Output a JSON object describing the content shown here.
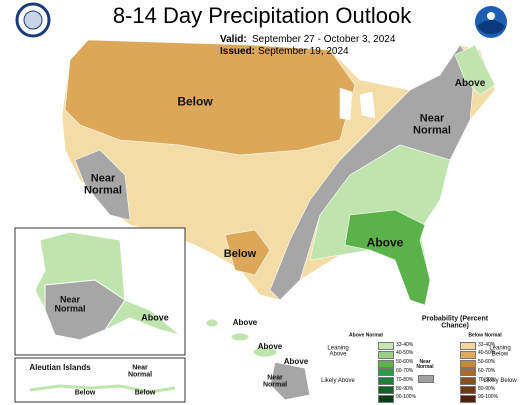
{
  "header": {
    "title": "8-14 Day Precipitation Outlook",
    "valid_label": "Valid:",
    "valid": "September 27 - October 3, 2024",
    "issued_label": "Issued:",
    "issued": "September 19, 2024"
  },
  "map_labels": [
    {
      "text": "Below"
    },
    {
      "text": "Above"
    },
    {
      "text": "Near Normal"
    },
    {
      "text": "Near Normal"
    },
    {
      "text": "Below"
    },
    {
      "text": "Above"
    },
    {
      "text": "Near Normal"
    },
    {
      "text": "Above"
    },
    {
      "text": "Aleutian Islands"
    },
    {
      "text": "Near Normal"
    },
    {
      "text": "Below"
    },
    {
      "text": "Below"
    },
    {
      "text": "Above"
    },
    {
      "text": "Above"
    },
    {
      "text": "Above"
    },
    {
      "text": "Near Normal"
    }
  ],
  "legend": {
    "title": "Probability (Percent Chance)",
    "above_header": "Above Normal",
    "below_header": "Below Normal",
    "near_normal": {
      "label": "Near Normal",
      "color": "#a0a0a0"
    },
    "above": {
      "leaning": "Leaning Above",
      "likely": "Likely Above",
      "bins": [
        {
          "range": "33-40%",
          "color": "#c8e6b5"
        },
        {
          "range": "40-50%",
          "color": "#9bd08a"
        },
        {
          "range": "50-60%",
          "color": "#5cb34e"
        },
        {
          "range": "60-70%",
          "color": "#2f9a4a"
        },
        {
          "range": "70-80%",
          "color": "#217f3c"
        },
        {
          "range": "80-90%",
          "color": "#135f2a"
        },
        {
          "range": "90-100%",
          "color": "#0b3f1a"
        }
      ]
    },
    "below": {
      "leaning": "Leaning Below",
      "likely": "Likely Below",
      "bins": [
        {
          "range": "33-40%",
          "color": "#f1d79c"
        },
        {
          "range": "40-50%",
          "color": "#dfaa62"
        },
        {
          "range": "50-60%",
          "color": "#c98a3c"
        },
        {
          "range": "60-70%",
          "color": "#a96a2c"
        },
        {
          "range": "70-80%",
          "color": "#8a4f1f"
        },
        {
          "range": "80-90%",
          "color": "#6c3815"
        },
        {
          "range": "90-100%",
          "color": "#4d250c"
        }
      ]
    }
  }
}
